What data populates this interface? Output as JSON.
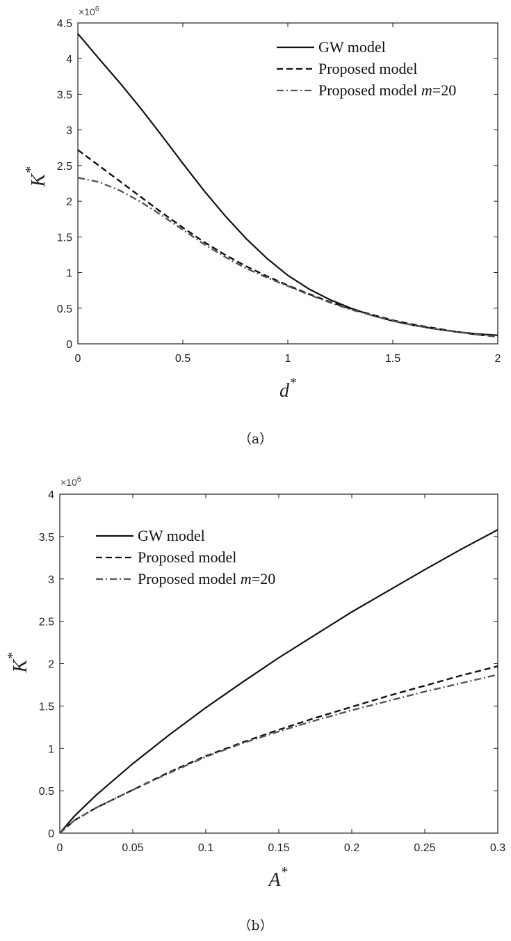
{
  "chart_data": [
    {
      "panel": "a",
      "type": "line",
      "caption": "（a）",
      "xlabel": "d",
      "xlabel_sup": "*",
      "ylabel": "K",
      "ylabel_sup": "*",
      "y_exponent_label": "×10",
      "y_exponent_power": "6",
      "xlim": [
        0,
        2
      ],
      "ylim": [
        0,
        4.5
      ],
      "xticks": [
        0,
        0.5,
        1,
        1.5,
        2
      ],
      "xtick_labels": [
        "0",
        "0.5",
        "1",
        "1.5",
        "2"
      ],
      "yticks": [
        0,
        0.5,
        1,
        1.5,
        2,
        2.5,
        3,
        3.5,
        4,
        4.5
      ],
      "ytick_labels": [
        "0",
        "0.5",
        "1",
        "1.5",
        "2",
        "2.5",
        "3",
        "3.5",
        "4",
        "4.5"
      ],
      "grid": false,
      "legend_position": "top-right",
      "series": [
        {
          "name": "GW model",
          "style": "solid",
          "x": [
            0,
            0.1,
            0.2,
            0.3,
            0.4,
            0.5,
            0.6,
            0.7,
            0.8,
            0.9,
            1.0,
            1.1,
            1.2,
            1.3,
            1.4,
            1.5,
            1.6,
            1.7,
            1.8,
            1.9,
            2.0
          ],
          "y": [
            4.35,
            4.0,
            3.66,
            3.3,
            2.92,
            2.53,
            2.15,
            1.8,
            1.48,
            1.2,
            0.96,
            0.77,
            0.62,
            0.5,
            0.4,
            0.32,
            0.26,
            0.21,
            0.17,
            0.14,
            0.12
          ]
        },
        {
          "name": "Proposed model",
          "style": "dashed",
          "x": [
            0,
            0.1,
            0.2,
            0.3,
            0.4,
            0.5,
            0.6,
            0.7,
            0.8,
            0.9,
            1.0,
            1.1,
            1.2,
            1.3,
            1.4,
            1.5,
            1.6,
            1.7,
            1.8,
            1.9,
            2.0
          ],
          "y": [
            2.72,
            2.5,
            2.28,
            2.06,
            1.84,
            1.63,
            1.43,
            1.25,
            1.09,
            0.95,
            0.82,
            0.7,
            0.59,
            0.49,
            0.41,
            0.33,
            0.27,
            0.22,
            0.17,
            0.13,
            0.1
          ]
        },
        {
          "name": "Proposed model m=20",
          "style": "dashdot",
          "x": [
            0,
            0.1,
            0.2,
            0.3,
            0.4,
            0.5,
            0.6,
            0.7,
            0.8,
            0.9,
            1.0,
            1.1,
            1.2,
            1.3,
            1.4,
            1.5,
            1.6,
            1.7,
            1.8,
            1.9,
            2.0
          ],
          "y": [
            2.33,
            2.27,
            2.15,
            1.99,
            1.8,
            1.6,
            1.4,
            1.22,
            1.06,
            0.93,
            0.81,
            0.69,
            0.58,
            0.48,
            0.4,
            0.32,
            0.26,
            0.21,
            0.17,
            0.13,
            0.1
          ]
        }
      ]
    },
    {
      "panel": "b",
      "type": "line",
      "caption": "（b）",
      "xlabel": "A",
      "xlabel_sup": "*",
      "ylabel": "K",
      "ylabel_sup": "*",
      "y_exponent_label": "×10",
      "y_exponent_power": "6",
      "xlim": [
        0,
        0.3
      ],
      "ylim": [
        0,
        4
      ],
      "xticks": [
        0,
        0.05,
        0.1,
        0.15,
        0.2,
        0.25,
        0.3
      ],
      "xtick_labels": [
        "0",
        "0.05",
        "0.1",
        "0.15",
        "0.2",
        "0.25",
        "0.3"
      ],
      "yticks": [
        0,
        0.5,
        1,
        1.5,
        2,
        2.5,
        3,
        3.5,
        4
      ],
      "ytick_labels": [
        "0",
        "0.5",
        "1",
        "1.5",
        "2",
        "2.5",
        "3",
        "3.5",
        "4"
      ],
      "grid": false,
      "legend_position": "top-left",
      "series": [
        {
          "name": "GW model",
          "style": "solid",
          "x": [
            0,
            0.01,
            0.025,
            0.05,
            0.075,
            0.1,
            0.125,
            0.15,
            0.175,
            0.2,
            0.225,
            0.25,
            0.275,
            0.3
          ],
          "y": [
            0,
            0.2,
            0.45,
            0.82,
            1.16,
            1.48,
            1.78,
            2.07,
            2.34,
            2.61,
            2.86,
            3.11,
            3.35,
            3.58
          ]
        },
        {
          "name": "Proposed model",
          "style": "dashed",
          "x": [
            0,
            0.01,
            0.025,
            0.05,
            0.075,
            0.1,
            0.125,
            0.15,
            0.175,
            0.2,
            0.225,
            0.25,
            0.275,
            0.3
          ],
          "y": [
            0,
            0.15,
            0.3,
            0.51,
            0.72,
            0.91,
            1.07,
            1.22,
            1.36,
            1.49,
            1.62,
            1.74,
            1.86,
            1.97
          ]
        },
        {
          "name": "Proposed model m=20",
          "style": "dashdot",
          "x": [
            0,
            0.01,
            0.025,
            0.05,
            0.075,
            0.1,
            0.125,
            0.15,
            0.175,
            0.2,
            0.225,
            0.25,
            0.275,
            0.3
          ],
          "y": [
            0,
            0.15,
            0.3,
            0.51,
            0.71,
            0.9,
            1.06,
            1.2,
            1.33,
            1.45,
            1.56,
            1.67,
            1.77,
            1.87
          ]
        }
      ]
    }
  ]
}
